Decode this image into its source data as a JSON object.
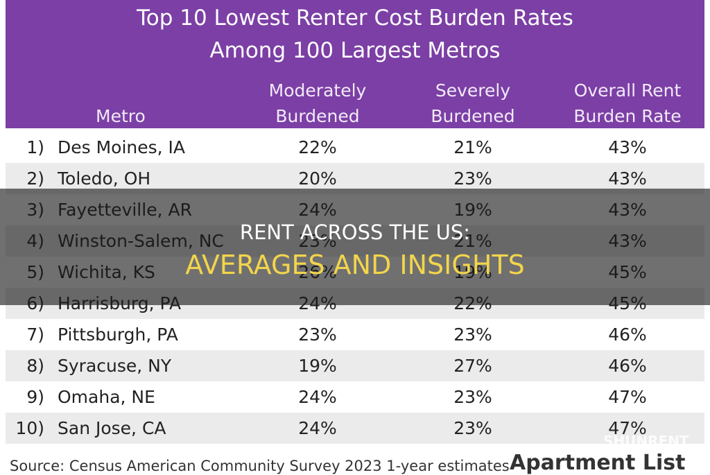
{
  "header": {
    "title": [
      "Top 10 Lowest Renter Cost Burden Rates",
      "Among 100 Largest Metros"
    ]
  },
  "table": {
    "columns": [
      [
        "Metro"
      ],
      [
        "Moderately",
        "Burdened"
      ],
      [
        "Severely",
        "Burdened"
      ],
      [
        "Overall Rent",
        "Burden Rate"
      ]
    ],
    "rows": [
      [
        "1)",
        "Des Moines, IA",
        "22%",
        "21%",
        "43%"
      ],
      [
        "2)",
        "Toledo, OH",
        "20%",
        "23%",
        "43%"
      ],
      [
        "3)",
        "Fayetteville, AR",
        "24%",
        "19%",
        "43%"
      ],
      [
        "4)",
        "Winston-Salem, NC",
        "23%",
        "21%",
        "43%"
      ],
      [
        "5)",
        "Wichita, KS",
        "26%",
        "19%",
        "45%"
      ],
      [
        "6)",
        "Harrisburg, PA",
        "24%",
        "22%",
        "45%"
      ],
      [
        "7)",
        "Pittsburgh, PA",
        "23%",
        "23%",
        "46%"
      ],
      [
        "8)",
        "Syracuse, NY",
        "19%",
        "27%",
        "46%"
      ],
      [
        "9)",
        "Omaha, NE",
        "24%",
        "23%",
        "47%"
      ],
      [
        "10)",
        "San Jose, CA",
        "24%",
        "23%",
        "47%"
      ]
    ]
  },
  "footer": {
    "source": "Source: Census American Community Survey 2023 1-year estimates",
    "logo": "Apartment List"
  },
  "banner": {
    "line1": "RENT ACROSS THE US:",
    "line2": "AVERAGES AND INSIGHTS"
  },
  "watermark": "SHUNRENT"
}
